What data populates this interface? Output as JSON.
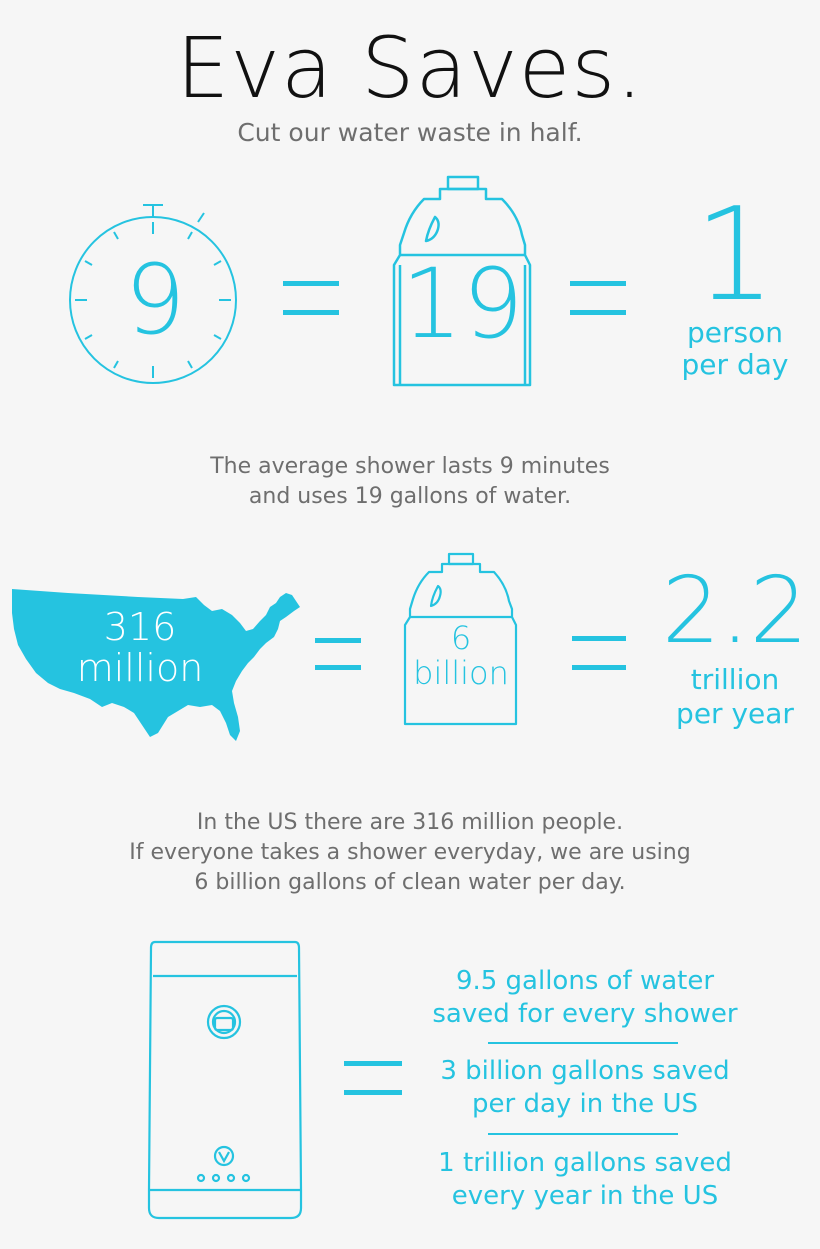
{
  "header": {
    "title": "Eva Saves.",
    "subtitle": "Cut our water waste in half."
  },
  "row1": {
    "timer_value": "9",
    "jug_value": "19",
    "result_value": "1",
    "result_unit_line1": "person",
    "result_unit_line2": "per day",
    "caption_line1": "The average shower lasts 9 minutes",
    "caption_line2": "and uses 19 gallons of water."
  },
  "row2": {
    "map_value_line1": "316",
    "map_value_line2": "million",
    "jug_value_line1": "6",
    "jug_value_line2": "billion",
    "result_value": "2.2",
    "result_unit_line1": "trillion",
    "result_unit_line2": "per year",
    "caption_line1": "In the US there are 316 million people.",
    "caption_line2": "If everyone takes a shower everyday, we are using",
    "caption_line3": "6 billion gallons of clean water per day."
  },
  "row3": {
    "saving1_line1": "9.5 gallons of water",
    "saving1_line2": "saved for every shower",
    "saving2_line1": "3 billion gallons saved",
    "saving2_line2": "per day in the US",
    "saving3_line1": "1 trillion gallons saved",
    "saving3_line2": "every year in the US"
  },
  "colors": {
    "accent": "#25c3e0",
    "text_gray": "#6e6e6e",
    "title": "#111111",
    "background": "#f6f6f6"
  }
}
